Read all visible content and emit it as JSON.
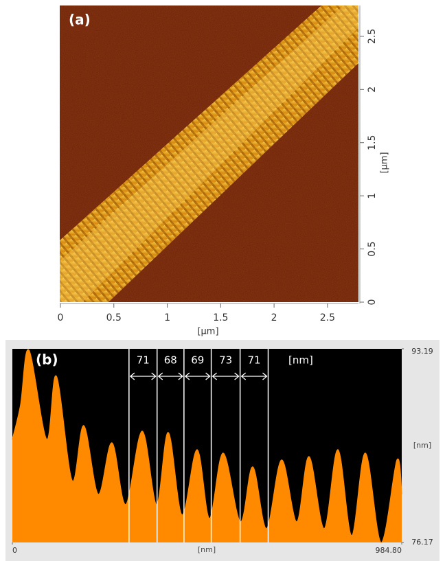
{
  "chart_data": [
    {
      "type": "image",
      "title": "(a)",
      "x_label": "[µm]",
      "y_label": "[µm]",
      "xlim": [
        0,
        2.79
      ],
      "xticks": [
        0,
        0.5,
        1,
        1.5,
        2,
        2.5
      ],
      "ylim": [
        0,
        2.79
      ],
      "yticks": [
        0,
        0.5,
        1,
        1.5,
        2,
        2.5
      ]
    },
    {
      "type": "area",
      "title": "(b)",
      "x_label": "[nm]",
      "y_label": "[nm]",
      "color": "#ff8a00",
      "xlim": [
        0,
        984.8
      ],
      "xticks": [
        0,
        {
          "value": 984.8,
          "label": "984.80"
        }
      ],
      "ylim": [
        76.17,
        93.19
      ],
      "yticks": [
        76.17,
        93.19
      ],
      "x": [
        0,
        20.8,
        41.7,
        86.8,
        111.2,
        151.1,
        180.6,
        217.1,
        251.9,
        286.6,
        328.3,
        364.7,
        394.3,
        429.0,
        467.2,
        498.5,
        533.2,
        576.7,
        607.9,
        642.7,
        680.9,
        719.1,
        750.3,
        788.6,
        823.3,
        858.0,
        892.8,
        932.7,
        972.7,
        984.8
      ],
      "values": [
        85.22,
        88.24,
        93.07,
        85.22,
        90.78,
        81.6,
        86.43,
        80.4,
        84.92,
        79.49,
        85.95,
        79.49,
        85.83,
        78.58,
        84.32,
        78.28,
        84.02,
        77.98,
        82.81,
        77.38,
        83.41,
        77.98,
        83.71,
        77.38,
        84.32,
        76.78,
        84.02,
        76.17,
        83.41,
        80.4
      ],
      "cursors": [
        295,
        366,
        434,
        503,
        576,
        647
      ],
      "spacings": [
        71,
        68,
        69,
        73,
        71
      ],
      "spacing_unit": "[nm]"
    }
  ]
}
